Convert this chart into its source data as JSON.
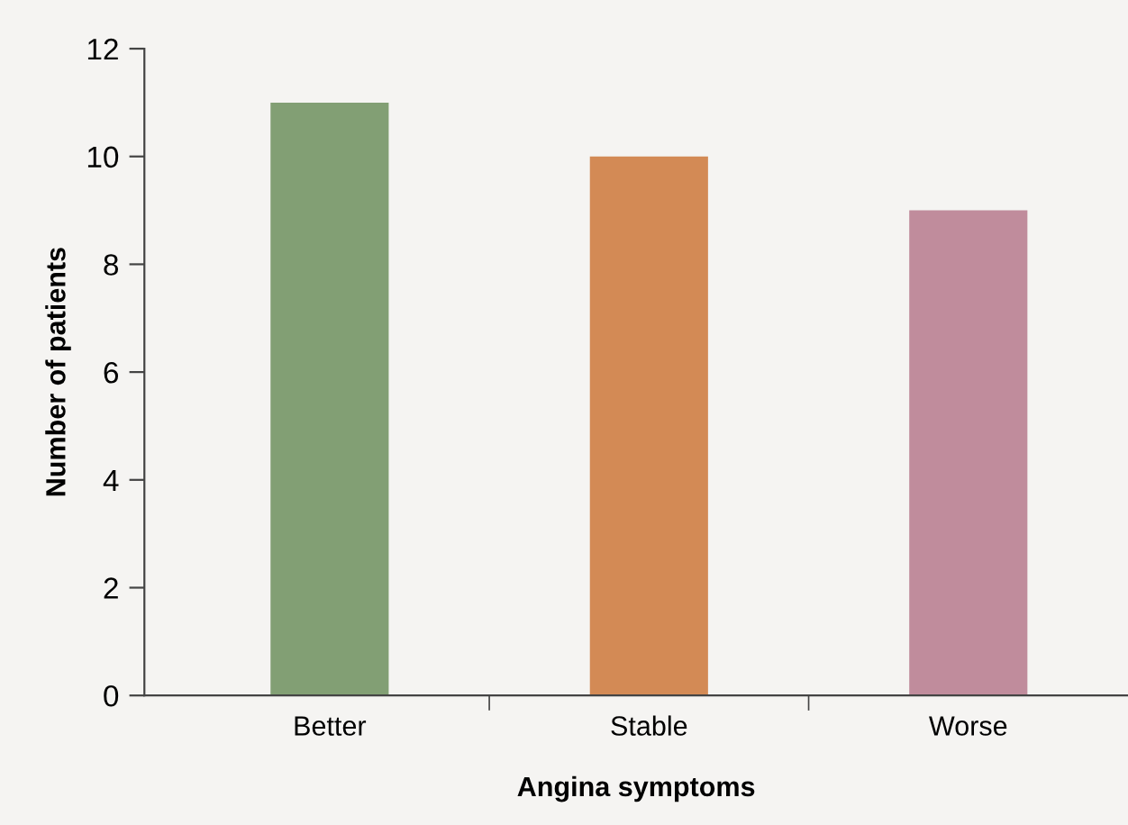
{
  "chart_data": {
    "type": "bar",
    "xlabel": "Angina symptoms",
    "ylabel": "Number of patients",
    "categories": [
      "Better",
      "Stable",
      "Worse"
    ],
    "values": [
      11,
      10,
      9
    ],
    "colors": [
      "#829f74",
      "#d38a55",
      "#c08c9c"
    ],
    "ylim": [
      0,
      12
    ],
    "yticks": [
      0,
      2,
      4,
      6,
      8,
      10,
      12
    ],
    "grid": false
  }
}
